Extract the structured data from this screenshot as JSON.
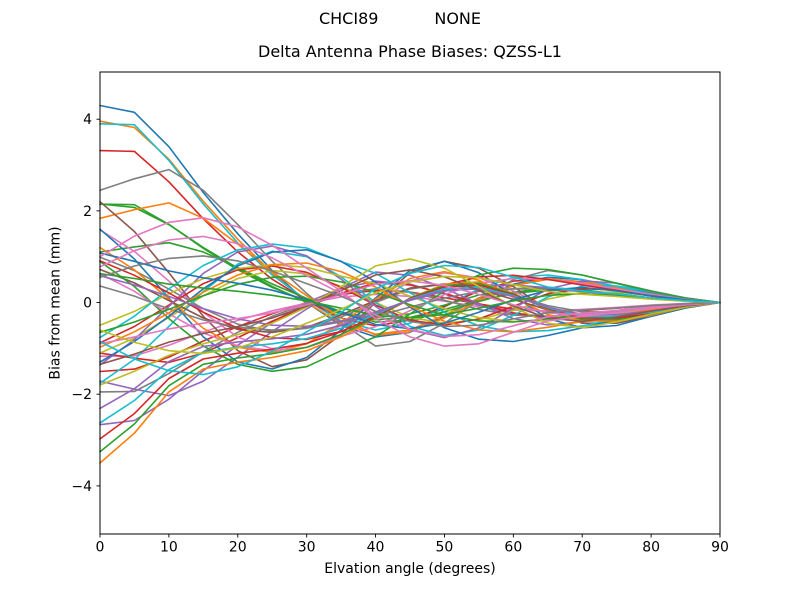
{
  "chart_data": {
    "type": "line",
    "title": "CHCI89           NONE",
    "subtitle": "Delta Antenna Phase Biases: QZSS-L1",
    "xlabel": "Elvation angle (degrees)",
    "ylabel": "Bias from mean (mm)",
    "xlim": [
      0,
      90
    ],
    "ylim": [
      -5.05,
      5.03
    ],
    "xticks": {
      "values": [
        0,
        10,
        20,
        30,
        40,
        50,
        60,
        70,
        80,
        90
      ],
      "labels": [
        "0",
        "10",
        "20",
        "30",
        "40",
        "50",
        "60",
        "70",
        "80",
        "90"
      ]
    },
    "yticks": {
      "values": [
        -4,
        -2,
        0,
        2,
        4
      ],
      "labels": [
        "−4",
        "−2",
        "0",
        "2",
        "4"
      ]
    },
    "grid": false,
    "legend": false,
    "axis_color": "#000000",
    "line_width": 1.6,
    "x": [
      0,
      5,
      10,
      15,
      20,
      25,
      30,
      35,
      40,
      45,
      50,
      55,
      60,
      65,
      70,
      75,
      80,
      85,
      90
    ],
    "shapes": {
      "s1": [
        4.3,
        4.15,
        3.4,
        2.4,
        1.5,
        0.7,
        0.0,
        -0.5,
        -0.75,
        -0.65,
        -0.3,
        0.1,
        0.4,
        0.55,
        0.5,
        0.35,
        0.2,
        0.08,
        0
      ],
      "s2": [
        3.9,
        3.88,
        3.1,
        2.15,
        1.3,
        0.6,
        0.05,
        -0.4,
        -0.6,
        -0.45,
        -0.1,
        0.3,
        0.55,
        0.6,
        0.5,
        0.35,
        0.18,
        0.06,
        0
      ],
      "s3": [
        2.45,
        2.7,
        2.9,
        2.45,
        1.7,
        0.9,
        0.2,
        -0.45,
        -0.95,
        -0.85,
        -0.45,
        0.05,
        0.5,
        0.7,
        0.6,
        0.42,
        0.22,
        0.08,
        0
      ],
      "s4": [
        2.2,
        1.55,
        0.65,
        -0.3,
        -1.05,
        -1.4,
        -1.25,
        -0.7,
        0.0,
        0.65,
        0.9,
        0.75,
        0.35,
        -0.15,
        -0.45,
        -0.45,
        -0.3,
        -0.12,
        0
      ],
      "s5": [
        1.6,
        0.95,
        0.1,
        -0.75,
        -1.3,
        -1.45,
        -1.2,
        -0.6,
        0.1,
        0.7,
        0.9,
        0.65,
        0.15,
        -0.35,
        -0.55,
        -0.5,
        -0.3,
        -0.12,
        0
      ],
      "s6": [
        0.9,
        0.35,
        -0.35,
        -0.95,
        -1.35,
        -1.5,
        -1.4,
        -1.05,
        -0.75,
        -0.25,
        0.25,
        0.6,
        0.75,
        0.72,
        0.6,
        0.42,
        0.25,
        0.1,
        0
      ],
      "s7": [
        -1.3,
        -0.85,
        -0.3,
        0.3,
        0.8,
        1.1,
        1.15,
        0.9,
        0.45,
        -0.1,
        -0.55,
        -0.8,
        -0.85,
        -0.72,
        -0.55,
        -0.38,
        -0.2,
        -0.07,
        0
      ],
      "s8": [
        -3.5,
        -2.85,
        -1.95,
        -1.45,
        -1.3,
        -1.2,
        -1.05,
        -0.75,
        -0.35,
        0.1,
        0.4,
        0.45,
        0.2,
        -0.15,
        -0.4,
        -0.4,
        -0.28,
        -0.1,
        0
      ],
      "s9": [
        -1.8,
        -1.5,
        -1.15,
        -0.9,
        -0.7,
        -0.45,
        -0.1,
        0.35,
        0.8,
        0.95,
        0.75,
        0.35,
        -0.1,
        -0.45,
        -0.55,
        -0.42,
        -0.25,
        -0.1,
        0
      ],
      "s10": [
        1.0,
        1.45,
        1.75,
        1.85,
        1.65,
        1.25,
        0.75,
        0.25,
        -0.35,
        -0.75,
        -0.95,
        -0.9,
        -0.65,
        -0.4,
        -0.3,
        -0.22,
        -0.12,
        -0.05,
        0
      ]
    },
    "series": [
      {
        "shape": "s1",
        "scale": 1.0,
        "color": "#1f77b4"
      },
      {
        "shape": "s1",
        "scale": 0.92,
        "color": "#ff7f0e"
      },
      {
        "shape": "s1",
        "scale": 0.5,
        "color": "#2ca02c"
      },
      {
        "shape": "s1",
        "scale": -0.35,
        "color": "#d62728"
      },
      {
        "shape": "s1",
        "scale": -0.62,
        "color": "#9467bd"
      },
      {
        "shape": "s2",
        "scale": 1.0,
        "color": "#17becf"
      },
      {
        "shape": "s2",
        "scale": 0.85,
        "color": "#d62728"
      },
      {
        "shape": "s2",
        "scale": 0.55,
        "color": "#2ca02c"
      },
      {
        "shape": "s2",
        "scale": -0.3,
        "color": "#e377c2"
      },
      {
        "shape": "s2",
        "scale": -0.5,
        "color": "#7f7f7f"
      },
      {
        "shape": "s3",
        "scale": 1.0,
        "color": "#7f7f7f"
      },
      {
        "shape": "s3",
        "scale": 0.75,
        "color": "#ff7f0e"
      },
      {
        "shape": "s3",
        "scale": 0.45,
        "color": "#2ca02c"
      },
      {
        "shape": "s3",
        "scale": -0.45,
        "color": "#d62728"
      },
      {
        "shape": "s3",
        "scale": -0.7,
        "color": "#9467bd"
      },
      {
        "shape": "s4",
        "scale": 1.0,
        "color": "#8c564b"
      },
      {
        "shape": "s4",
        "scale": 0.72,
        "color": "#e377c2"
      },
      {
        "shape": "s4",
        "scale": 0.45,
        "color": "#7f7f7f"
      },
      {
        "shape": "s4",
        "scale": -0.5,
        "color": "#bcbd22"
      },
      {
        "shape": "s4",
        "scale": -0.8,
        "color": "#17becf"
      },
      {
        "shape": "s5",
        "scale": 1.0,
        "color": "#1f77b4"
      },
      {
        "shape": "s5",
        "scale": 0.75,
        "color": "#ff7f0e"
      },
      {
        "shape": "s5",
        "scale": 0.45,
        "color": "#8c564b"
      },
      {
        "shape": "s5",
        "scale": -0.55,
        "color": "#d62728"
      },
      {
        "shape": "s5",
        "scale": -0.85,
        "color": "#9467bd"
      },
      {
        "shape": "s6",
        "scale": 1.0,
        "color": "#2ca02c"
      },
      {
        "shape": "s6",
        "scale": 0.7,
        "color": "#e377c2"
      },
      {
        "shape": "s6",
        "scale": 0.4,
        "color": "#7f7f7f"
      },
      {
        "shape": "s6",
        "scale": -0.55,
        "color": "#bcbd22"
      },
      {
        "shape": "s6",
        "scale": -0.85,
        "color": "#17becf"
      },
      {
        "shape": "s7",
        "scale": 1.0,
        "color": "#1f77b4"
      },
      {
        "shape": "s7",
        "scale": 0.75,
        "color": "#ff7f0e"
      },
      {
        "shape": "s7",
        "scale": 0.5,
        "color": "#2ca02c"
      },
      {
        "shape": "s7",
        "scale": -0.7,
        "color": "#d62728"
      },
      {
        "shape": "s7",
        "scale": -0.45,
        "color": "#9467bd"
      },
      {
        "shape": "s8",
        "scale": 1.0,
        "color": "#ff7f0e"
      },
      {
        "shape": "s8",
        "scale": 0.93,
        "color": "#2ca02c"
      },
      {
        "shape": "s8",
        "scale": 0.85,
        "color": "#d62728"
      },
      {
        "shape": "s8",
        "scale": 0.75,
        "color": "#17becf"
      },
      {
        "shape": "s8",
        "scale": 0.66,
        "color": "#9467bd"
      },
      {
        "shape": "s9",
        "scale": 1.0,
        "color": "#bcbd22"
      },
      {
        "shape": "s9",
        "scale": 0.75,
        "color": "#8c564b"
      },
      {
        "shape": "s9",
        "scale": 0.5,
        "color": "#e377c2"
      },
      {
        "shape": "s9",
        "scale": -0.6,
        "color": "#1f77b4"
      },
      {
        "shape": "s9",
        "scale": -0.35,
        "color": "#2ca02c"
      },
      {
        "shape": "s10",
        "scale": 1.0,
        "color": "#e377c2"
      },
      {
        "shape": "s10",
        "scale": 0.78,
        "color": "#e377c2"
      },
      {
        "shape": "s10",
        "scale": 0.55,
        "color": "#7f7f7f"
      },
      {
        "shape": "s10",
        "scale": -0.6,
        "color": "#bcbd22"
      },
      {
        "shape": "s10",
        "scale": -0.85,
        "color": "#17becf"
      }
    ]
  }
}
